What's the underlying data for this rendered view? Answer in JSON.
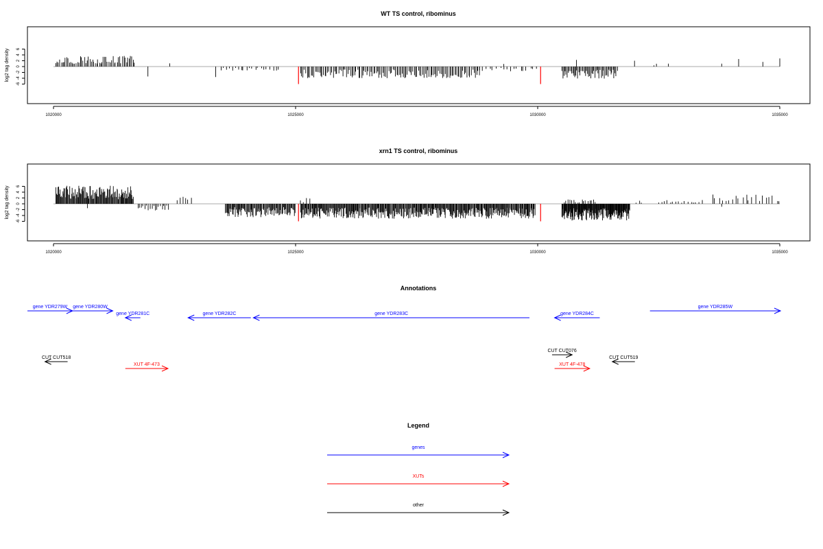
{
  "chart_data": [
    {
      "type": "bar",
      "title": "WT TS control, ribominus",
      "ylabel": "log2 tag density",
      "xlim": [
        1020000,
        1035000
      ],
      "ylim": [
        -6,
        6
      ],
      "xticks": [
        1020000,
        1025000,
        1030000,
        1035000
      ],
      "yticks": [
        6,
        4,
        2,
        0,
        -2,
        -4,
        -6
      ],
      "highlight_color": "#ff0000",
      "highlight_positions": [
        1025060,
        1030060
      ],
      "regions": [
        {
          "start": 1020050,
          "end": 1021700,
          "sign": 1,
          "step": 28,
          "max": 3.8
        },
        {
          "start": 1021950,
          "end": 1021950,
          "sign": -1,
          "step": 50,
          "max": 3.4
        },
        {
          "start": 1022400,
          "end": 1022400,
          "sign": 1,
          "step": 50,
          "max": 1.1
        },
        {
          "start": 1023350,
          "end": 1023350,
          "sign": -1,
          "step": 50,
          "max": 3.6
        },
        {
          "start": 1023450,
          "end": 1024700,
          "sign": -1,
          "step": 60,
          "max": 1.4
        },
        {
          "start": 1025100,
          "end": 1028800,
          "sign": -1,
          "step": 28,
          "max": 4.0
        },
        {
          "start": 1028800,
          "end": 1030000,
          "sign": -1,
          "step": 70,
          "max": 1.6
        },
        {
          "start": 1029300,
          "end": 1029300,
          "sign": 1,
          "step": 50,
          "max": 0.9
        },
        {
          "start": 1030500,
          "end": 1031650,
          "sign": -1,
          "step": 22,
          "max": 4.2
        },
        {
          "start": 1030800,
          "end": 1030800,
          "sign": 1,
          "step": 50,
          "max": 2.3
        },
        {
          "start": 1032000,
          "end": 1032000,
          "sign": 1,
          "step": 50,
          "max": 2.0
        },
        {
          "start": 1032400,
          "end": 1032500,
          "sign": 1,
          "step": 80,
          "max": 1.0
        },
        {
          "start": 1032700,
          "end": 1032700,
          "sign": 1,
          "step": 50,
          "max": 1.0
        },
        {
          "start": 1033800,
          "end": 1033800,
          "sign": 1,
          "step": 50,
          "max": 1.0
        },
        {
          "start": 1034150,
          "end": 1034150,
          "sign": 1,
          "step": 50,
          "max": 2.6
        },
        {
          "start": 1034650,
          "end": 1034650,
          "sign": 1,
          "step": 50,
          "max": 1.6
        },
        {
          "start": 1035000,
          "end": 1035000,
          "sign": 1,
          "step": 50,
          "max": 2.8
        }
      ]
    },
    {
      "type": "bar",
      "title": "xrn1 TS control, ribominus",
      "ylabel": "log2 tag density",
      "xlim": [
        1020000,
        1035000
      ],
      "ylim": [
        -6,
        6
      ],
      "xticks": [
        1020000,
        1025000,
        1030000,
        1035000
      ],
      "yticks": [
        6,
        4,
        2,
        0,
        -2,
        -4,
        -6
      ],
      "highlight_color": "#ff0000",
      "highlight_positions": [
        1025060,
        1030060
      ],
      "regions": [
        {
          "start": 1020050,
          "end": 1021650,
          "sign": 1,
          "step": 14,
          "max": 6.2
        },
        {
          "start": 1020700,
          "end": 1020700,
          "sign": -1,
          "step": 50,
          "max": 1.5
        },
        {
          "start": 1021750,
          "end": 1022400,
          "sign": -1,
          "step": 35,
          "max": 2.4
        },
        {
          "start": 1022550,
          "end": 1022850,
          "sign": 1,
          "step": 60,
          "max": 2.8
        },
        {
          "start": 1023550,
          "end": 1025000,
          "sign": -1,
          "step": 16,
          "max": 4.6
        },
        {
          "start": 1025100,
          "end": 1025300,
          "sign": 1,
          "step": 60,
          "max": 2.1
        },
        {
          "start": 1025100,
          "end": 1029950,
          "sign": -1,
          "step": 14,
          "max": 5.1
        },
        {
          "start": 1030500,
          "end": 1031900,
          "sign": -1,
          "step": 10,
          "max": 5.8
        },
        {
          "start": 1030550,
          "end": 1031200,
          "sign": 1,
          "step": 40,
          "max": 1.5
        },
        {
          "start": 1032000,
          "end": 1032200,
          "sign": 1,
          "step": 80,
          "max": 1.2
        },
        {
          "start": 1032500,
          "end": 1033400,
          "sign": 1,
          "step": 60,
          "max": 1.3
        },
        {
          "start": 1033600,
          "end": 1035000,
          "sign": 1,
          "step": 70,
          "max": 3.4
        },
        {
          "start": 1033800,
          "end": 1033800,
          "sign": -1,
          "step": 50,
          "max": 1.0
        }
      ]
    }
  ],
  "annotations": {
    "title": "Annotations",
    "genes": [
      {
        "label": "gene YDR279W",
        "start": 1020000,
        "end": 1020900,
        "dir": "right"
      },
      {
        "label": "gene YDR280W",
        "start": 1020800,
        "end": 1021700,
        "dir": "right"
      },
      {
        "label": "gene YDR281C",
        "start": 1021950,
        "end": 1022250,
        "dir": "left"
      },
      {
        "label": "gene YDR282C",
        "start": 1023200,
        "end": 1024450,
        "dir": "left"
      },
      {
        "label": "gene YDR283C",
        "start": 1024500,
        "end": 1030000,
        "dir": "left"
      },
      {
        "label": "gene YDR284C",
        "start": 1030500,
        "end": 1031400,
        "dir": "left"
      },
      {
        "label": "gene YDR285W",
        "start": 1032400,
        "end": 1035000,
        "dir": "right"
      }
    ],
    "cuts": [
      {
        "label": "CUT CUT518",
        "start": 1020350,
        "end": 1020800,
        "dir": "left"
      },
      {
        "label": "CUT CUT076",
        "start": 1030450,
        "end": 1030850,
        "dir": "right"
      },
      {
        "label": "CUT CUT519",
        "start": 1031650,
        "end": 1032100,
        "dir": "left"
      }
    ],
    "xuts": [
      {
        "label": "XUT 4F-473",
        "start": 1021950,
        "end": 1022800,
        "dir": "right"
      },
      {
        "label": "XUT 4F-478",
        "start": 1030500,
        "end": 1031200,
        "dir": "right"
      }
    ]
  },
  "legend": {
    "title": "Legend",
    "items": [
      {
        "label": "genes",
        "color": "#0000ff"
      },
      {
        "label": "XUTs",
        "color": "#ff0000"
      },
      {
        "label": "other",
        "color": "#000000"
      }
    ]
  },
  "colors": {
    "gene": "#0000ff",
    "xut": "#ff0000",
    "other": "#000000",
    "baseline": "#aaaaaa"
  }
}
